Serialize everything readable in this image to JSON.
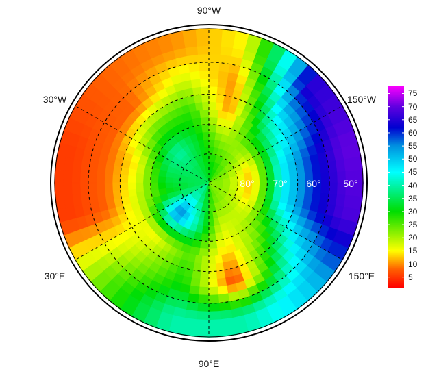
{
  "map": {
    "projection": "north polar stereographic",
    "longitude_labels": [
      {
        "text": "90°W",
        "lon": -90
      },
      {
        "text": "30°W",
        "lon": -30
      },
      {
        "text": "150°W",
        "lon": -150
      },
      {
        "text": "30°E",
        "lon": 30
      },
      {
        "text": "150°E",
        "lon": 150
      },
      {
        "text": "90°E",
        "lon": 90
      }
    ],
    "latitude_labels": [
      {
        "text": "80°",
        "lat": 80
      },
      {
        "text": "70°",
        "lat": 70
      },
      {
        "text": "60°",
        "lat": 60
      },
      {
        "text": "50°",
        "lat": 50
      }
    ],
    "field": {
      "lon_centers": [
        -165,
        -135,
        -105,
        -75,
        -45,
        -15,
        15,
        45,
        75,
        105,
        135,
        165
      ],
      "lat_centers": [
        85,
        75,
        65,
        55,
        45
      ],
      "values": [
        [
          22,
          25,
          30,
          32,
          35,
          35,
          35,
          40,
          35,
          25,
          22,
          22
        ],
        [
          12,
          20,
          22,
          32,
          40,
          35,
          30,
          58,
          40,
          18,
          18,
          12
        ],
        [
          45,
          35,
          10,
          28,
          25,
          15,
          18,
          15,
          25,
          12,
          25,
          45
        ],
        [
          60,
          50,
          10,
          18,
          8,
          8,
          8,
          20,
          30,
          5,
          40,
          60
        ],
        [
          70,
          65,
          15,
          10,
          8,
          5,
          5,
          25,
          40,
          40,
          50,
          68
        ]
      ]
    }
  },
  "colorbar": {
    "ticks": [
      "5",
      "10",
      "15",
      "20",
      "25",
      "30",
      "35",
      "40",
      "45",
      "50",
      "55",
      "60",
      "65",
      "70",
      "75"
    ],
    "range": [
      1,
      78
    ],
    "stops": [
      {
        "v": 0,
        "c": "#ff0000"
      },
      {
        "v": 8,
        "c": "#ff6000"
      },
      {
        "v": 15,
        "c": "#ffff00"
      },
      {
        "v": 30,
        "c": "#00dd00"
      },
      {
        "v": 45,
        "c": "#00ffff"
      },
      {
        "v": 55,
        "c": "#0090e0"
      },
      {
        "v": 62,
        "c": "#0000d0"
      },
      {
        "v": 70,
        "c": "#6000e0"
      },
      {
        "v": 78,
        "c": "#ff00ff"
      }
    ]
  }
}
